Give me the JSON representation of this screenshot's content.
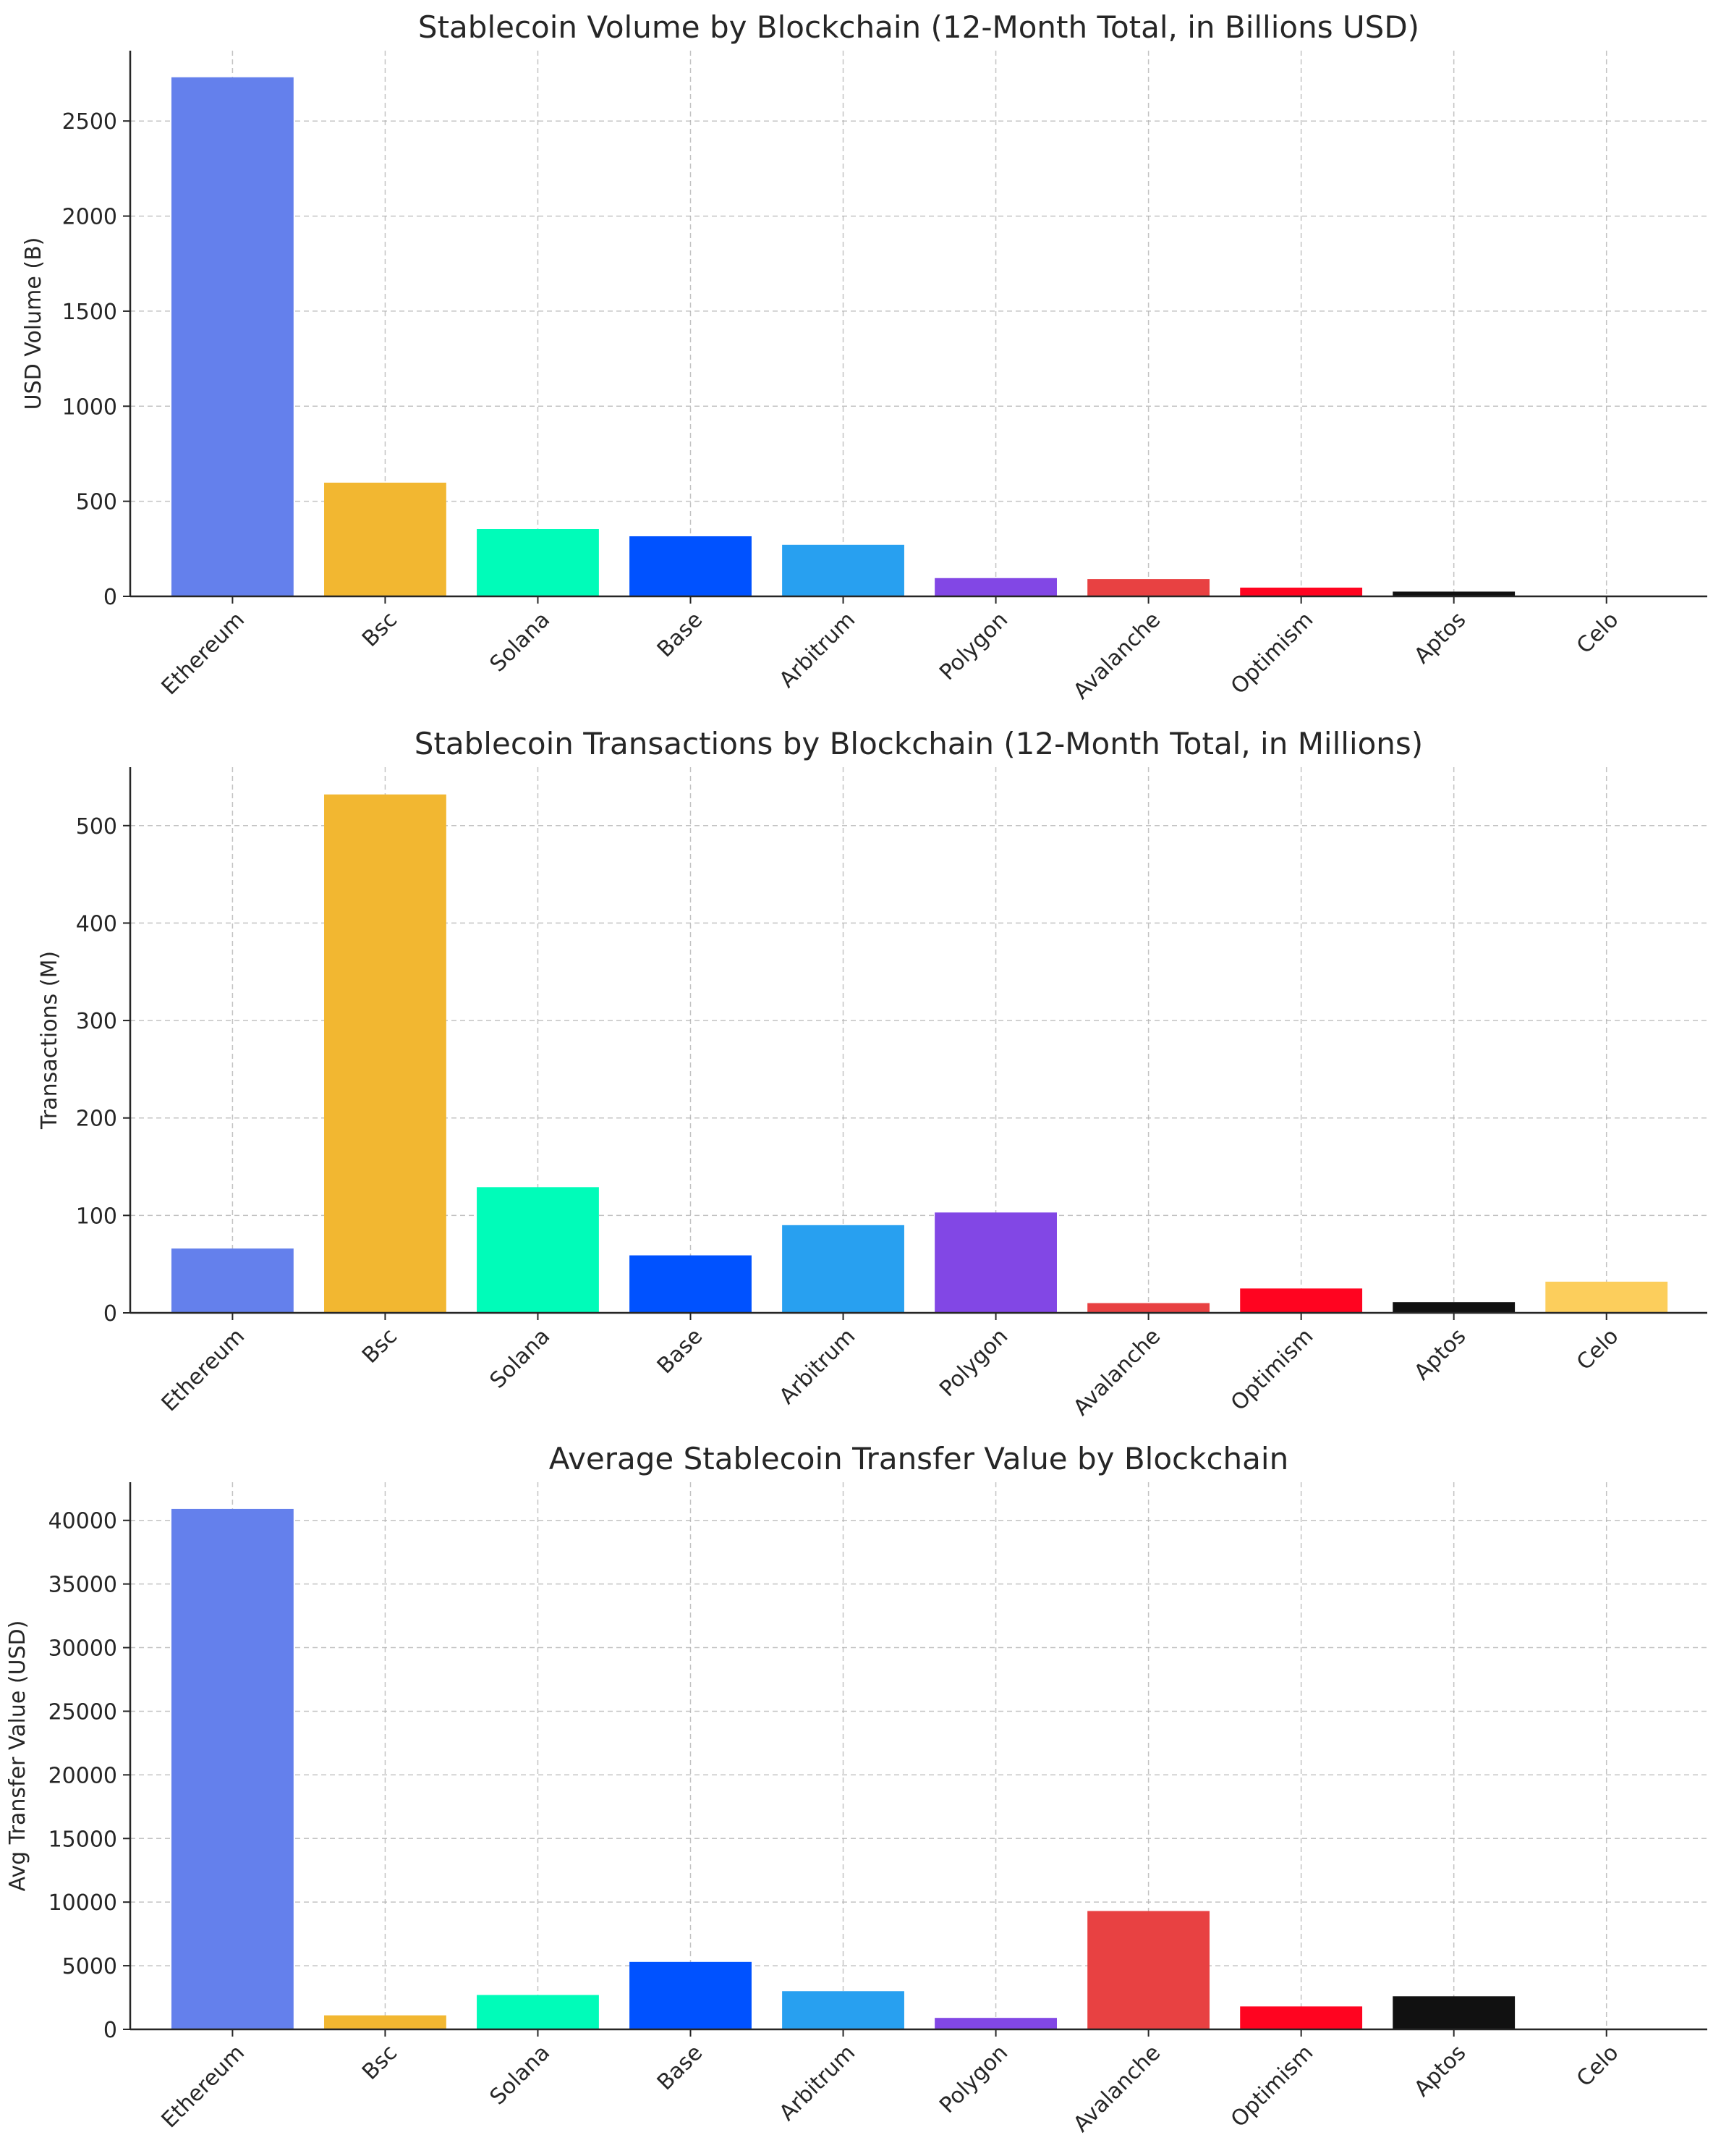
{
  "chart_data": [
    {
      "type": "bar",
      "title": "Stablecoin Volume by Blockchain (12-Month Total, in Billions USD)",
      "xlabel": "",
      "ylabel": "USD Volume (B)",
      "categories": [
        "Ethereum",
        "Bsc",
        "Solana",
        "Base",
        "Arbitrum",
        "Polygon",
        "Avalanche",
        "Optimism",
        "Aptos",
        "Celo"
      ],
      "values": [
        2730,
        598,
        354,
        316,
        271,
        96,
        91,
        46,
        25,
        0.2
      ],
      "colors": [
        "#6480ec",
        "#f2b731",
        "#00fcb9",
        "#0052ff",
        "#28a0f0",
        "#8247e5",
        "#e84142",
        "#ff0420",
        "#111111",
        "#fcce5c"
      ],
      "yticks": [
        0,
        500,
        1000,
        1500,
        2000,
        2500
      ],
      "ylim": [
        0,
        2870
      ],
      "grid": true
    },
    {
      "type": "bar",
      "title": "Stablecoin Transactions by Blockchain (12-Month Total, in Millions)",
      "xlabel": "",
      "ylabel": "Transactions (M)",
      "categories": [
        "Ethereum",
        "Bsc",
        "Solana",
        "Base",
        "Arbitrum",
        "Polygon",
        "Avalanche",
        "Optimism",
        "Aptos",
        "Celo"
      ],
      "values": [
        66,
        532,
        129,
        59,
        90,
        103,
        10,
        25,
        11,
        32
      ],
      "colors": [
        "#6480ec",
        "#f2b731",
        "#00fcb9",
        "#0052ff",
        "#28a0f0",
        "#8247e5",
        "#e84142",
        "#ff0420",
        "#111111",
        "#fcce5c"
      ],
      "yticks": [
        0,
        100,
        200,
        300,
        400,
        500
      ],
      "ylim": [
        0,
        560
      ],
      "grid": true
    },
    {
      "type": "bar",
      "title": "Average Stablecoin Transfer Value by Blockchain",
      "xlabel": "",
      "ylabel": "Avg Transfer Value (USD)",
      "categories": [
        "Ethereum",
        "Bsc",
        "Solana",
        "Base",
        "Arbitrum",
        "Polygon",
        "Avalanche",
        "Optimism",
        "Aptos",
        "Celo"
      ],
      "values": [
        40900,
        1100,
        2700,
        5300,
        3000,
        900,
        9300,
        1800,
        2600,
        10
      ],
      "colors": [
        "#6480ec",
        "#f2b731",
        "#00fcb9",
        "#0052ff",
        "#28a0f0",
        "#8247e5",
        "#e84142",
        "#ff0420",
        "#111111",
        "#fcce5c"
      ],
      "yticks": [
        0,
        5000,
        10000,
        15000,
        20000,
        25000,
        30000,
        35000,
        40000
      ],
      "ylim": [
        0,
        43000
      ],
      "grid": true
    }
  ]
}
